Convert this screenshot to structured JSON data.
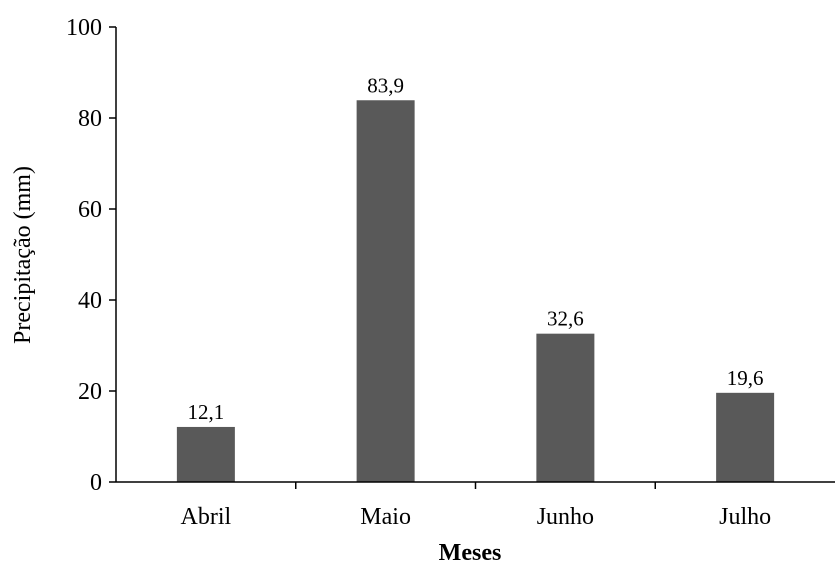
{
  "chart_data": {
    "type": "bar",
    "title": "",
    "xlabel": "Meses",
    "ylabel": "Precipitação (mm)",
    "categories": [
      "Abril",
      "Maio",
      "Junho",
      "Julho"
    ],
    "values": [
      12.1,
      83.9,
      32.6,
      19.6
    ],
    "data_labels": [
      "12,1",
      "83,9",
      "32,6",
      "19,6"
    ],
    "ylim": [
      0,
      100
    ],
    "yticks": [
      0,
      20,
      40,
      60,
      80,
      100
    ],
    "grid": false,
    "legend": "none",
    "bar_color": "#595959"
  }
}
